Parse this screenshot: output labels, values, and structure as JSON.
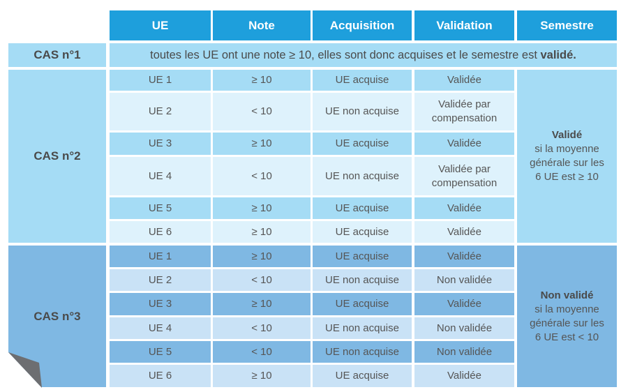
{
  "header": {
    "columns": [
      "UE",
      "Note",
      "Acquisition",
      "Validation",
      "Semestre"
    ]
  },
  "cas1": {
    "label": "CAS n°1",
    "text": "toutes les UE ont une note ≥ 10, elles sont donc acquises et le semestre est",
    "bold": "validé."
  },
  "cas2": {
    "label": "CAS n°2",
    "rows": [
      [
        "UE 1",
        "≥ 10",
        "UE acquise",
        "Validée"
      ],
      [
        "UE 2",
        "< 10",
        "UE non acquise",
        "Validée par compensation"
      ],
      [
        "UE 3",
        "≥ 10",
        "UE acquise",
        "Validée"
      ],
      [
        "UE 4",
        "< 10",
        "UE non acquise",
        "Validée par compensation"
      ],
      [
        "UE 5",
        "≥ 10",
        "UE acquise",
        "Validée"
      ],
      [
        "UE 6",
        "≥ 10",
        "UE acquise",
        "Validée"
      ]
    ],
    "semestre": {
      "title": "Validé",
      "lines": [
        "si la moyenne",
        "générale sur les",
        "6 UE est  ≥ 10"
      ]
    }
  },
  "cas3": {
    "label": "CAS n°3",
    "rows": [
      [
        "UE 1",
        "≥ 10",
        "UE acquise",
        "Validée"
      ],
      [
        "UE 2",
        "< 10",
        "UE non acquise",
        "Non validée"
      ],
      [
        "UE 3",
        "≥ 10",
        "UE acquise",
        "Validée"
      ],
      [
        "UE 4",
        "< 10",
        "UE non acquise",
        "Non validée"
      ],
      [
        "UE 5",
        "< 10",
        "UE non acquise",
        "Non validée"
      ],
      [
        "UE 6",
        "≥ 10",
        "UE acquise",
        "Validée"
      ]
    ],
    "semestre": {
      "title": "Non validé",
      "lines": [
        "si la moyenne",
        "générale sur les",
        "6 UE est < 10"
      ]
    }
  }
}
